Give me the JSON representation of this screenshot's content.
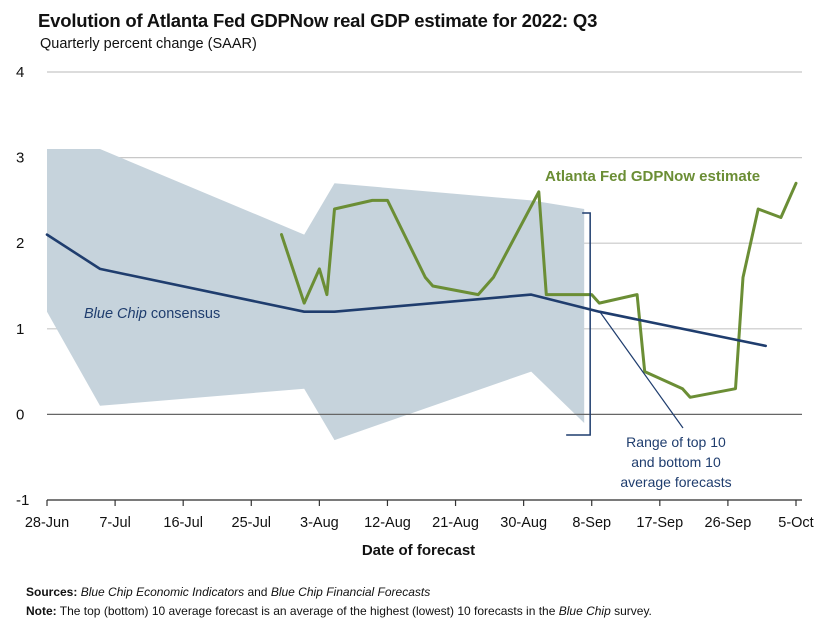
{
  "title": "Evolution of Atlanta Fed GDPNow real GDP estimate for 2022: Q3",
  "subtitle": "Quarterly percent change (SAAR)",
  "footer": {
    "sources_label": "Sources:",
    "sources_text_1": "Blue Chip Economic Indicators",
    "sources_and": " and ",
    "sources_text_2": "Blue Chip Financial Forecasts",
    "note_label": "Note:",
    "note_text": " The top (bottom) 10 average forecast is an average of the highest (lowest) 10 forecasts in the ",
    "note_italic": "Blue Chip",
    "note_end": " survey."
  },
  "colors": {
    "gdpnow": "#6b8e35",
    "bluechip": "#1f3d6e",
    "range": "#c6d3dc",
    "grid": "#c8c8c8",
    "axis": "#333333"
  },
  "chart_data": {
    "type": "line",
    "title": "Evolution of Atlanta Fed GDPNow real GDP estimate for 2022: Q3",
    "ylabel": "Quarterly percent change (SAAR)",
    "xlabel": "Date of forecast",
    "ylim": [
      -1,
      4
    ],
    "yticks": [
      -1,
      0,
      1,
      2,
      3,
      4
    ],
    "xlim": [
      "2022-06-28",
      "2022-10-05"
    ],
    "xticks": [
      "28-Jun",
      "7-Jul",
      "16-Jul",
      "25-Jul",
      "3-Aug",
      "12-Aug",
      "21-Aug",
      "30-Aug",
      "8-Sep",
      "17-Sep",
      "26-Sep",
      "5-Oct"
    ],
    "xtick_dates": [
      "2022-06-28",
      "2022-07-07",
      "2022-07-16",
      "2022-07-25",
      "2022-08-03",
      "2022-08-12",
      "2022-08-21",
      "2022-08-30",
      "2022-09-08",
      "2022-09-17",
      "2022-09-26",
      "2022-10-05"
    ],
    "grid": "horizontal",
    "series": [
      {
        "name": "Atlanta Fed GDPNow estimate",
        "x": [
          "2022-07-29",
          "2022-08-01",
          "2022-08-03",
          "2022-08-04",
          "2022-08-05",
          "2022-08-10",
          "2022-08-12",
          "2022-08-17",
          "2022-08-18",
          "2022-08-24",
          "2022-08-26",
          "2022-09-01",
          "2022-09-02",
          "2022-09-08",
          "2022-09-09",
          "2022-09-14",
          "2022-09-15",
          "2022-09-20",
          "2022-09-21",
          "2022-09-27",
          "2022-09-28",
          "2022-09-30",
          "2022-10-03",
          "2022-10-05"
        ],
        "values": [
          2.1,
          1.3,
          1.7,
          1.4,
          2.4,
          2.5,
          2.5,
          1.6,
          1.5,
          1.4,
          1.6,
          2.6,
          1.4,
          1.4,
          1.3,
          1.4,
          0.5,
          0.3,
          0.2,
          0.3,
          1.6,
          2.4,
          2.3,
          2.7
        ]
      },
      {
        "name": "Blue Chip consensus",
        "x": [
          "2022-06-28",
          "2022-07-05",
          "2022-08-01",
          "2022-08-05",
          "2022-08-31",
          "2022-09-09",
          "2022-10-01"
        ],
        "values": [
          2.1,
          1.7,
          1.2,
          1.2,
          1.4,
          1.2,
          0.8
        ]
      },
      {
        "name": "Range of top 10 and bottom 10 average forecasts",
        "type": "area-range",
        "x": [
          "2022-06-28",
          "2022-07-05",
          "2022-08-01",
          "2022-08-05",
          "2022-08-31",
          "2022-09-07"
        ],
        "upper": [
          3.1,
          3.1,
          2.1,
          2.7,
          2.5,
          2.4
        ],
        "lower": [
          1.2,
          0.1,
          0.3,
          -0.3,
          0.5,
          -0.1
        ]
      }
    ],
    "annotations": [
      {
        "text": "Atlanta Fed GDPNow estimate",
        "series": "Atlanta Fed GDPNow estimate"
      },
      {
        "text_italic": "Blue Chip",
        "text": " consensus",
        "series": "Blue Chip consensus"
      },
      {
        "lines": [
          "Range of top 10",
          "and bottom 10",
          "average forecasts"
        ],
        "series": "Range of top 10 and bottom 10 average forecasts"
      }
    ]
  }
}
